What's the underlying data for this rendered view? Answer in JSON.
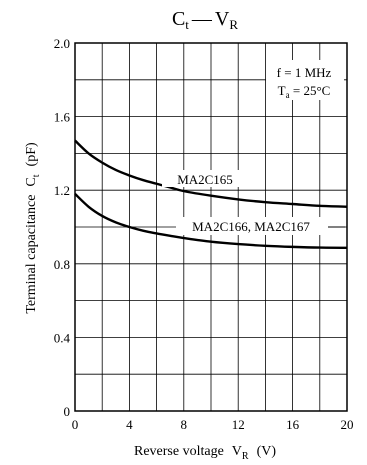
{
  "chart_data": {
    "type": "line",
    "title": {
      "main": "C",
      "main_sub": "t",
      "dash": "—",
      "var": "V",
      "var_sub": "R"
    },
    "xlabel": {
      "text": "Reverse voltage",
      "symbol": "V",
      "symbol_sub": "R",
      "unit": "(V)"
    },
    "ylabel": {
      "text": "Terminal capacitance",
      "symbol": "C",
      "symbol_sub": "t",
      "unit": "(pF)"
    },
    "xlim": [
      0,
      20
    ],
    "ylim": [
      0,
      2.0
    ],
    "x_ticks": [
      0,
      4,
      8,
      12,
      16,
      20
    ],
    "x_tick_labels": [
      "0",
      "4",
      "8",
      "12",
      "16",
      "20"
    ],
    "y_ticks": [
      0,
      0.4,
      0.8,
      1.2,
      1.6,
      2.0
    ],
    "y_tick_labels": [
      "0",
      "0.4",
      "0.8",
      "1.2",
      "1.6",
      "2.0"
    ],
    "grid": true,
    "grid_x_step": 2,
    "grid_y_step": 0.2,
    "conditions": [
      {
        "text": "f = 1 MHz"
      },
      {
        "prefix": "T",
        "sub": "a",
        "suffix": " = 25°C"
      }
    ],
    "series": [
      {
        "name": "MA2C165",
        "x": [
          0,
          1,
          2,
          3,
          4,
          5,
          6,
          7,
          8,
          10,
          12,
          14,
          16,
          18,
          20
        ],
        "values": [
          1.47,
          1.4,
          1.35,
          1.31,
          1.28,
          1.255,
          1.235,
          1.215,
          1.195,
          1.17,
          1.15,
          1.135,
          1.125,
          1.115,
          1.11
        ]
      },
      {
        "name": "MA2C166, MA2C167",
        "x": [
          0,
          1,
          2,
          3,
          4,
          5,
          6,
          7,
          8,
          10,
          12,
          14,
          16,
          18,
          20
        ],
        "values": [
          1.18,
          1.11,
          1.06,
          1.025,
          1.0,
          0.98,
          0.965,
          0.952,
          0.94,
          0.92,
          0.907,
          0.898,
          0.892,
          0.888,
          0.887
        ]
      }
    ]
  }
}
